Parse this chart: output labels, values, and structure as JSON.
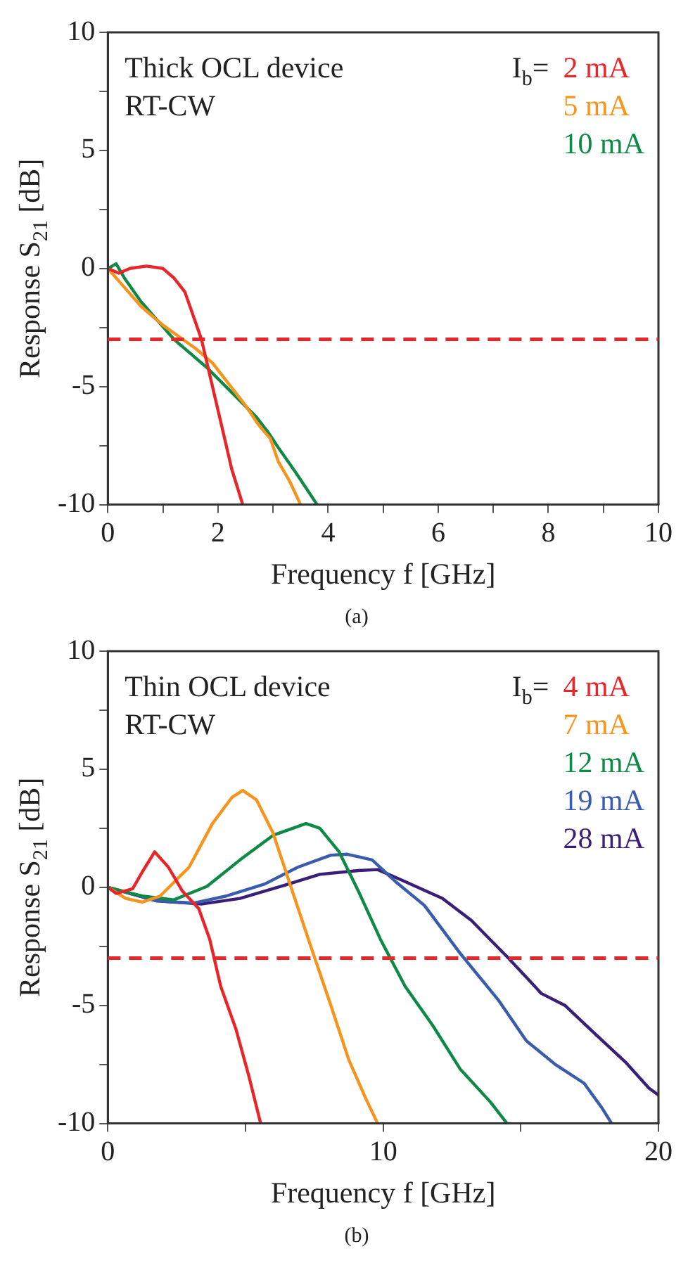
{
  "chart_data": [
    {
      "type": "line",
      "title": "(a)",
      "xlabel": "Frequency f [GHz]",
      "ylabel": "Response S$_{21}$ [dB]",
      "legend_title": "I$_{b}$=",
      "annotations": [
        "Thick OCL device",
        "RT-CW"
      ],
      "xlim": [
        0,
        10
      ],
      "xticks": [
        0,
        {
          "value": 1,
          "label": null
        },
        2,
        {
          "value": 3,
          "label": null
        },
        4,
        {
          "value": 5,
          "label": null
        },
        6,
        {
          "value": 7,
          "label": null
        },
        8,
        {
          "value": 9,
          "label": null
        },
        10
      ],
      "ylim": [
        -10,
        10
      ],
      "yticks": [
        -10,
        {
          "value": -7.5,
          "label": null
        },
        -5,
        {
          "value": -2.5,
          "label": null
        },
        0,
        {
          "value": 2.5,
          "label": null
        },
        5,
        {
          "value": 7.5,
          "label": null
        },
        10
      ],
      "grid": false,
      "legend": "top right",
      "marker": "none",
      "line_style": "solid",
      "ref_lines": [
        {
          "axis": "y",
          "value": -3,
          "color": "#e8262a",
          "line_style": "dashed"
        }
      ],
      "series": [
        {
          "name": "2 mA",
          "color": "#e8262a",
          "x": [
            0,
            0.2,
            0.4,
            0.7,
            1.0,
            1.2,
            1.4,
            1.55,
            1.7,
            1.85,
            2.0,
            2.1,
            2.25,
            2.45
          ],
          "values": [
            0,
            -0.2,
            0,
            0.1,
            0,
            -0.4,
            -1.0,
            -2,
            -3,
            -4.5,
            -6,
            -7,
            -8.5,
            -10
          ]
        },
        {
          "name": "5 mA",
          "color": "#f7941d",
          "x": [
            0,
            0.3,
            0.6,
            0.8,
            1.0,
            1.3,
            1.6,
            1.9,
            2.2,
            2.5,
            2.7,
            2.8,
            2.95,
            3.1,
            3.3,
            3.5
          ],
          "values": [
            0,
            -0.8,
            -1.6,
            -2.0,
            -2.4,
            -2.9,
            -3.4,
            -4.0,
            -4.9,
            -5.8,
            -6.5,
            -6.8,
            -7.2,
            -8.2,
            -9.0,
            -10
          ]
        },
        {
          "name": "10 mA",
          "color": "#0f8a46",
          "x": [
            0,
            0.15,
            0.3,
            0.6,
            0.9,
            1.2,
            1.5,
            1.8,
            2.1,
            2.4,
            2.7,
            2.9,
            3.1,
            3.4,
            3.6,
            3.8
          ],
          "values": [
            0,
            0.2,
            -0.4,
            -1.4,
            -2.2,
            -3.0,
            -3.6,
            -4.2,
            -4.9,
            -5.6,
            -6.3,
            -6.9,
            -7.6,
            -8.6,
            -9.3,
            -10
          ]
        }
      ]
    },
    {
      "type": "line",
      "title": "(b)",
      "xlabel": "Frequency f [GHz]",
      "ylabel": "Response S$_{21}$ [dB]",
      "legend_title": "I$_{b}$=",
      "annotations": [
        "Thin OCL device",
        "RT-CW"
      ],
      "xlim": [
        0,
        20
      ],
      "xticks": [
        0,
        {
          "value": 5,
          "label": null
        },
        10,
        {
          "value": 15,
          "label": null
        },
        20
      ],
      "ylim": [
        -10,
        10
      ],
      "yticks": [
        -10,
        {
          "value": -7.5,
          "label": null
        },
        -5,
        {
          "value": -2.5,
          "label": null
        },
        0,
        {
          "value": 2.5,
          "label": null
        },
        5,
        {
          "value": 7.5,
          "label": null
        },
        10
      ],
      "grid": false,
      "legend": "top right",
      "marker": "none",
      "line_style": "solid",
      "ref_lines": [
        {
          "axis": "y",
          "value": -3,
          "color": "#e8262a",
          "line_style": "dashed"
        }
      ],
      "series": [
        {
          "name": "4 mA",
          "color": "#e8262a",
          "x": [
            0,
            0.3,
            0.9,
            1.25,
            1.7,
            2.2,
            2.7,
            3.3,
            3.7,
            4.1,
            4.65,
            5.1,
            5.55
          ],
          "values": [
            0,
            -0.26,
            -0.06,
            0.65,
            1.5,
            0.85,
            -0.15,
            -0.9,
            -2.2,
            -4.2,
            -6.0,
            -7.9,
            -10
          ]
        },
        {
          "name": "7 mA",
          "color": "#f7941d",
          "x": [
            0,
            0.65,
            1.25,
            1.9,
            2.95,
            3.8,
            4.5,
            4.9,
            5.4,
            6.0,
            6.7,
            7.4,
            8.1,
            8.75,
            9.35,
            9.8
          ],
          "values": [
            0,
            -0.47,
            -0.63,
            -0.37,
            0.85,
            2.7,
            3.8,
            4.1,
            3.7,
            2.3,
            -0.16,
            -2.6,
            -5.0,
            -7.3,
            -8.9,
            -10
          ]
        },
        {
          "name": "12 mA",
          "color": "#0f8a46",
          "x": [
            0,
            1.25,
            2.4,
            3.6,
            4.8,
            6.0,
            7.2,
            7.7,
            8.4,
            9.1,
            9.9,
            10.8,
            11.8,
            12.8,
            13.9,
            14.5
          ],
          "values": [
            0,
            -0.37,
            -0.53,
            0.04,
            1.16,
            2.2,
            2.7,
            2.5,
            1.5,
            -0.16,
            -2.2,
            -4.2,
            -5.85,
            -7.7,
            -9.1,
            -10
          ]
        },
        {
          "name": "19 mA",
          "color": "#3a5cad",
          "x": [
            0,
            1.75,
            3.1,
            4.3,
            5.7,
            6.9,
            8.1,
            8.7,
            9.6,
            10.45,
            11.5,
            12.8,
            14.2,
            15.2,
            16.25,
            17.3,
            17.95,
            18.3
          ],
          "values": [
            0,
            -0.57,
            -0.67,
            -0.37,
            0.14,
            0.85,
            1.36,
            1.4,
            1.16,
            0.24,
            -0.77,
            -2.8,
            -4.8,
            -6.5,
            -7.5,
            -8.3,
            -9.35,
            -10
          ]
        },
        {
          "name": "28 mA",
          "color": "#3a1f78",
          "x": [
            0,
            1.75,
            3.4,
            4.8,
            6.4,
            7.7,
            9.1,
            9.8,
            10.8,
            12.15,
            13.2,
            14.55,
            15.75,
            16.6,
            17.6,
            18.8,
            19.65,
            20
          ],
          "values": [
            0,
            -0.57,
            -0.71,
            -0.47,
            0.08,
            0.55,
            0.71,
            0.75,
            0.24,
            -0.47,
            -1.4,
            -3.0,
            -4.5,
            -5.0,
            -6.1,
            -7.4,
            -8.5,
            -8.8
          ]
        }
      ]
    }
  ]
}
